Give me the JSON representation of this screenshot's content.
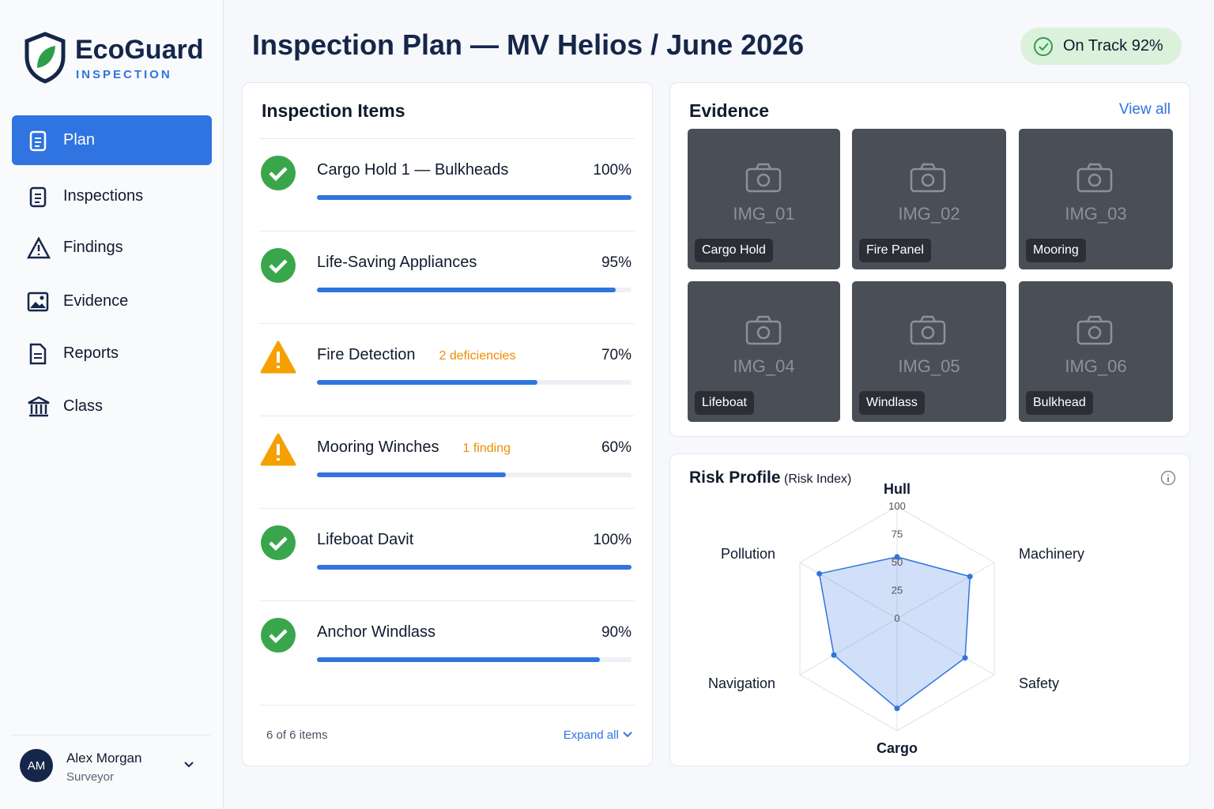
{
  "sidebar": {
    "brand": "EcoGuard",
    "brand_sub": "INSPECTION",
    "nav": [
      "Plan",
      "Inspections",
      "Findings",
      "Evidence",
      "Reports",
      "Class"
    ],
    "user": {
      "initials": "AM",
      "name": "Alex Morgan",
      "role": "Surveyor"
    }
  },
  "header": {
    "title": "Inspection Plan — MV Helios / June 2026",
    "status": "On Track 92%"
  },
  "items_card": {
    "title": "Inspection Items",
    "items": [
      {
        "name": "Cargo Hold 1 — Bulkheads",
        "value": 100,
        "value_label": "100%"
      },
      {
        "name": "Life-Saving Appliances",
        "value": 95,
        "value_label": "95%"
      },
      {
        "name": "Fire Detection",
        "note": "2 deficiencies",
        "value": 70,
        "value_label": "70%"
      },
      {
        "name": "Mooring Winches",
        "note": "1 finding",
        "value": 60,
        "value_label": "60%"
      },
      {
        "name": "Lifeboat Davit",
        "value": 100,
        "value_label": "100%"
      },
      {
        "name": "Anchor Windlass",
        "value": 90,
        "value_label": "90%"
      }
    ],
    "footer": "6 of 6 items",
    "expand": "Expand all"
  },
  "evidence": {
    "title": "Evidence",
    "view_all": "View all",
    "tiles": [
      {
        "id": "IMG_01",
        "label": "Cargo Hold"
      },
      {
        "id": "IMG_02",
        "label": "Fire Panel"
      },
      {
        "id": "IMG_03",
        "label": "Mooring"
      },
      {
        "id": "IMG_04",
        "label": "Lifeboat"
      },
      {
        "id": "IMG_05",
        "label": "Windlass"
      },
      {
        "id": "IMG_06",
        "label": "Bulkhead"
      }
    ]
  },
  "chart_data": {
    "type": "radar",
    "title": "Risk Profile",
    "subtitle": "(Risk Index)",
    "categories": [
      "Hull",
      "Machinery",
      "Safety",
      "Cargo",
      "Navigation",
      "Pollution"
    ],
    "values": [
      55,
      75,
      70,
      80,
      65,
      80
    ],
    "color": "#2f74e0",
    "rlim": [
      0,
      100
    ],
    "rticks": [
      0,
      25,
      50,
      75,
      100
    ]
  }
}
